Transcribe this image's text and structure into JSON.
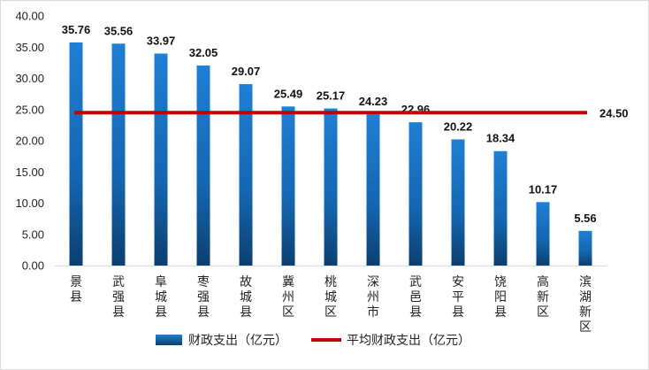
{
  "chart_data": {
    "type": "bar",
    "categories": [
      "景县",
      "武强县",
      "阜城县",
      "枣强县",
      "故城县",
      "冀州区",
      "桃城区",
      "深州市",
      "武邑县",
      "安平县",
      "饶阳县",
      "高新区",
      "滨湖新区"
    ],
    "series": [
      {
        "name": "财政支出（亿元）",
        "type": "bar",
        "color": "#1a6fc4",
        "values": [
          35.76,
          35.56,
          33.97,
          32.05,
          29.07,
          25.49,
          25.17,
          24.23,
          22.96,
          20.22,
          18.34,
          10.17,
          5.56
        ],
        "labels": [
          "35.76",
          "35.56",
          "33.97",
          "32.05",
          "29.07",
          "25.49",
          "25.17",
          "24.23",
          "22.96",
          "20.22",
          "18.34",
          "10.17",
          "5.56"
        ]
      },
      {
        "name": "平均财政支出（亿元）",
        "type": "line",
        "color": "#c00000",
        "value": 24.5,
        "label": "24.50"
      }
    ],
    "ylim": [
      0,
      40
    ],
    "yticks": [
      "0.00",
      "5.00",
      "10.00",
      "15.00",
      "20.00",
      "25.00",
      "30.00",
      "35.00",
      "40.00"
    ],
    "grid": false,
    "legend": "bottom"
  }
}
